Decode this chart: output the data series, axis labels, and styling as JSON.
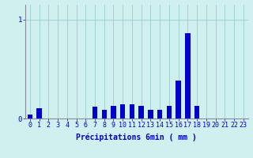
{
  "title": "",
  "xlabel": "Précipitations 6min ( mm )",
  "ylabel": "",
  "background_color": "#d0f0f0",
  "bar_color": "#0000cc",
  "grid_color": "#99cccc",
  "axis_color": "#888899",
  "text_color": "#0000cc",
  "ylim": [
    0,
    1.15
  ],
  "yticks": [
    0,
    1
  ],
  "xlim": [
    -0.5,
    23.5
  ],
  "categories": [
    0,
    1,
    2,
    3,
    4,
    5,
    6,
    7,
    8,
    9,
    10,
    11,
    12,
    13,
    14,
    15,
    16,
    17,
    18,
    19,
    20,
    21,
    22,
    23
  ],
  "values": [
    0.04,
    0.1,
    0.0,
    0.0,
    0.0,
    0.0,
    0.0,
    0.12,
    0.09,
    0.13,
    0.14,
    0.14,
    0.13,
    0.09,
    0.09,
    0.13,
    0.38,
    0.86,
    0.13,
    0.0,
    0.0,
    0.0,
    0.0,
    0.0
  ],
  "bar_width": 0.55,
  "label_fontsize": 7,
  "tick_fontsize": 6.5
}
